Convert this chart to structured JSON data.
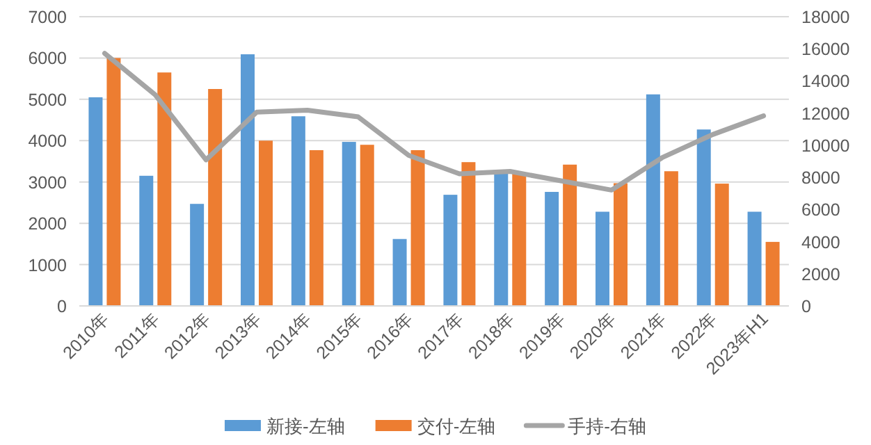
{
  "chart_data": {
    "type": "bar",
    "categories": [
      "2010年",
      "2011年",
      "2012年",
      "2013年",
      "2014年",
      "2015年",
      "2016年",
      "2017年",
      "2018年",
      "2019年",
      "2020年",
      "2021年",
      "2022年",
      "2023年H1"
    ],
    "series": [
      {
        "name": "新接-左轴",
        "color": "#5b9bd5",
        "values": [
          5050,
          3150,
          2470,
          6090,
          4590,
          3970,
          1620,
          2690,
          3260,
          2760,
          2280,
          5120,
          4270,
          2280
        ]
      },
      {
        "name": "交付-左轴",
        "color": "#ed7d31",
        "values": [
          6000,
          5650,
          5250,
          4000,
          3770,
          3900,
          3770,
          3480,
          3200,
          3420,
          2970,
          3260,
          2960,
          1550
        ]
      },
      {
        "name": "手持-右轴",
        "color": "#a5a5a5",
        "type": "line",
        "axis": "y2",
        "values": [
          15720,
          13130,
          9090,
          12060,
          12180,
          11770,
          9370,
          8220,
          8370,
          7790,
          7210,
          9230,
          10670,
          11830
        ]
      }
    ],
    "ylim": [
      0,
      7000
    ],
    "yticks": [
      0,
      1000,
      2000,
      3000,
      4000,
      5000,
      6000,
      7000
    ],
    "y2lim": [
      0,
      18000
    ],
    "y2ticks": [
      0,
      2000,
      4000,
      6000,
      8000,
      10000,
      12000,
      14000,
      16000,
      18000
    ],
    "grid": "y",
    "legend": "bottom"
  }
}
